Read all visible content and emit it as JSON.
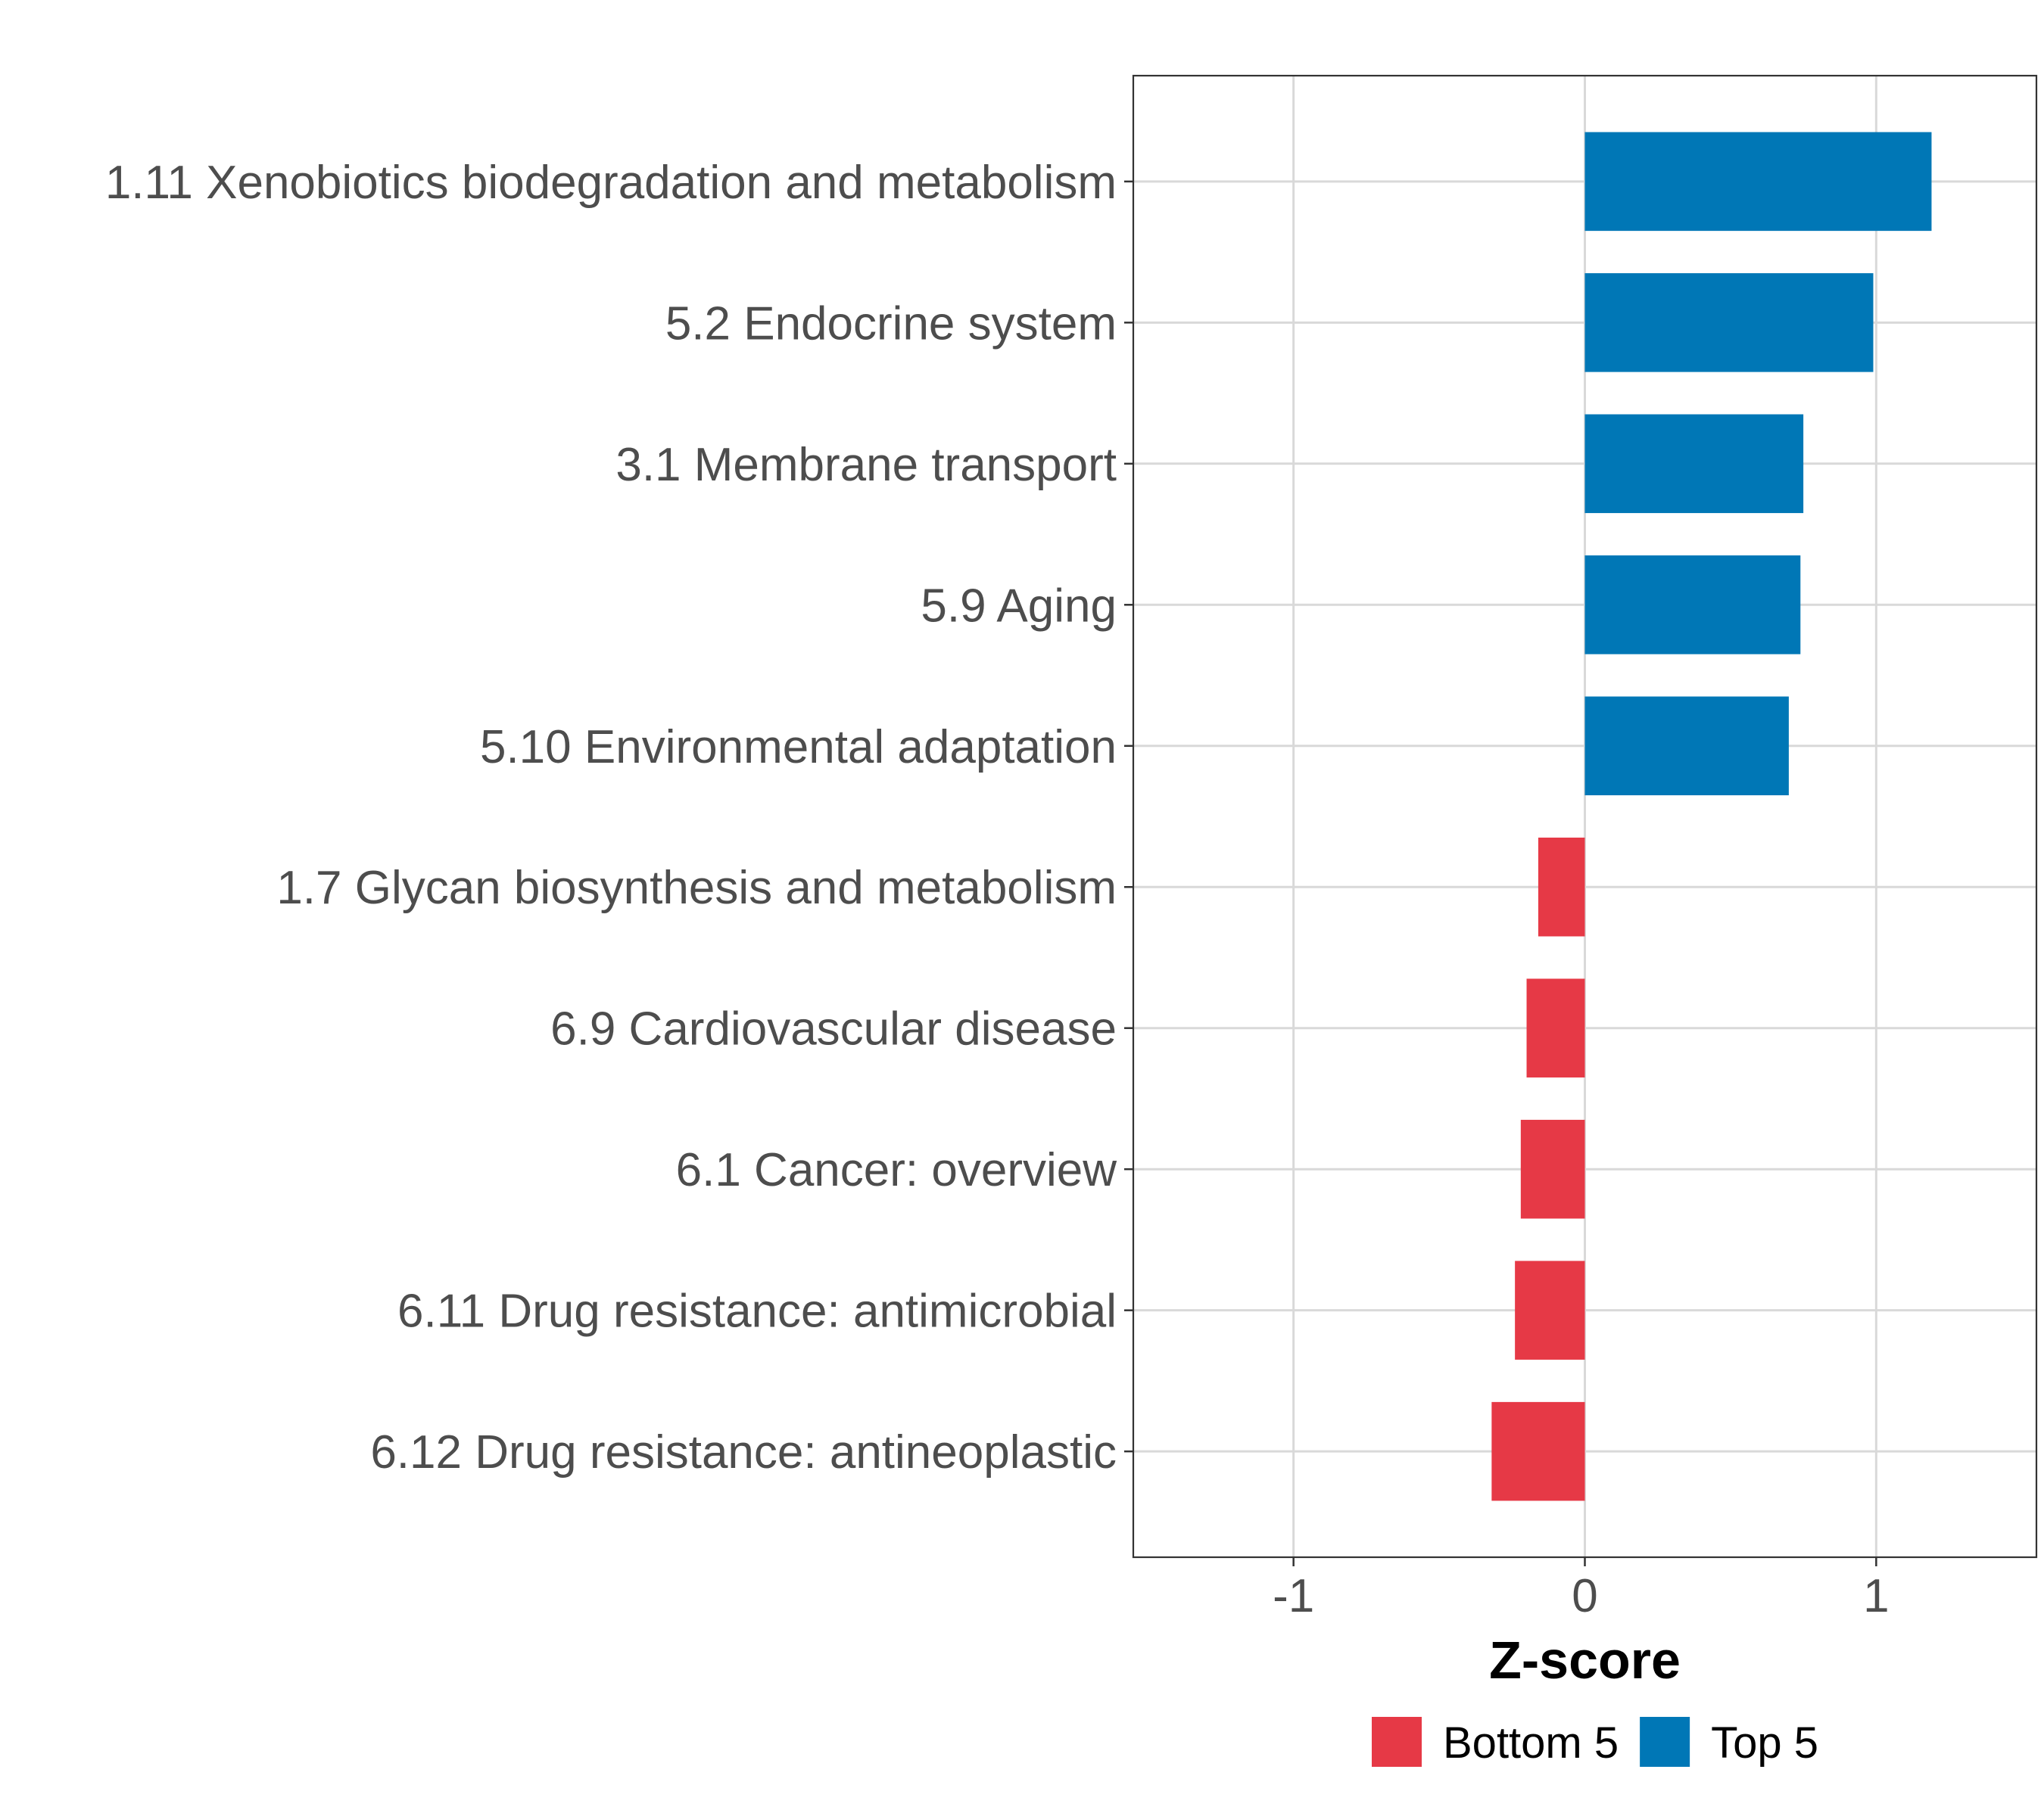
{
  "chart_data": {
    "type": "bar",
    "orientation": "horizontal",
    "categories": [
      "1.11 Xenobiotics biodegradation and metabolism",
      "5.2 Endocrine system",
      "3.1 Membrane transport",
      "5.9 Aging",
      "5.10 Environmental adaptation",
      "1.7 Glycan biosynthesis and metabolism",
      "6.9 Cardiovascular disease",
      "6.1 Cancer: overview",
      "6.11 Drug resistance: antimicrobial",
      "6.12 Drug resistance: antineoplastic"
    ],
    "values": [
      1.19,
      0.99,
      0.75,
      0.74,
      0.7,
      -0.16,
      -0.2,
      -0.22,
      -0.24,
      -0.32
    ],
    "groups": [
      "Top 5",
      "Top 5",
      "Top 5",
      "Top 5",
      "Top 5",
      "Bottom 5",
      "Bottom 5",
      "Bottom 5",
      "Bottom 5",
      "Bottom 5"
    ],
    "xlabel": "Z-score",
    "ylabel": "",
    "xlim": [
      -1.55,
      1.55
    ],
    "xticks": [
      -1,
      0,
      1
    ],
    "xtick_labels": [
      "-1",
      "0",
      "1"
    ],
    "grid": true,
    "legend": {
      "position": "bottom",
      "entries": [
        {
          "label": "Bottom 5",
          "color": "#E63946"
        },
        {
          "label": "Top 5",
          "color": "#0077B6"
        }
      ]
    }
  }
}
